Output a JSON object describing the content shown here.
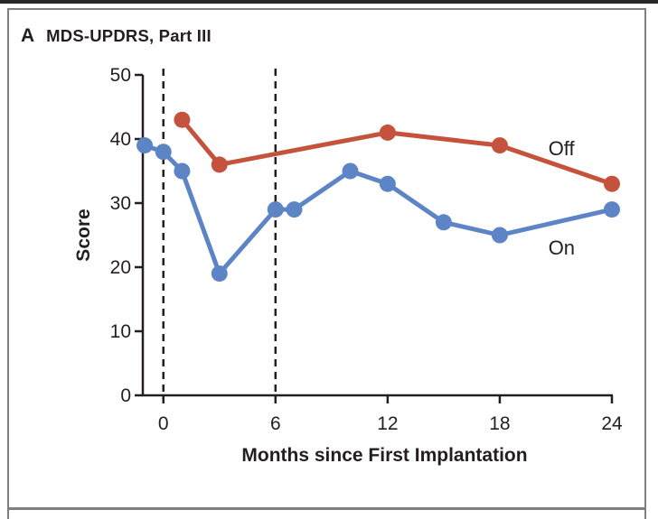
{
  "page": {
    "background": "#ffffff",
    "top_rule_color": "#2b2627",
    "frame_color": "#7f7f7f"
  },
  "panel": {
    "label": "A",
    "title": "MDS-UPDRS, Part III"
  },
  "chart_data": {
    "type": "line",
    "title": "MDS-UPDRS, Part III",
    "xlabel": "Months since First Implantation",
    "ylabel": "Score",
    "xlim": [
      -1.1,
      24
    ],
    "ylim": [
      0,
      50
    ],
    "x_ticks": [
      0,
      6,
      12,
      18,
      24
    ],
    "y_ticks": [
      0,
      10,
      20,
      30,
      40,
      50
    ],
    "grid": false,
    "dashed_reference_x": [
      0,
      6
    ],
    "axis_color": "#231f20",
    "series": [
      {
        "name": "Off",
        "color": "#c4523c",
        "x": [
          1,
          3,
          12,
          18,
          24
        ],
        "values": [
          43,
          36,
          41,
          39,
          33
        ],
        "label": {
          "text": "Off",
          "x": 20.6,
          "y": 37.5
        }
      },
      {
        "name": "On",
        "color": "#5d85c6",
        "x": [
          -1,
          0,
          1,
          3,
          6,
          7,
          10,
          12,
          15,
          18,
          24
        ],
        "values": [
          39,
          38,
          35,
          19,
          29,
          29,
          35,
          33,
          27,
          25,
          29
        ],
        "label": {
          "text": "On",
          "x": 20.6,
          "y": 22.0
        }
      }
    ]
  }
}
